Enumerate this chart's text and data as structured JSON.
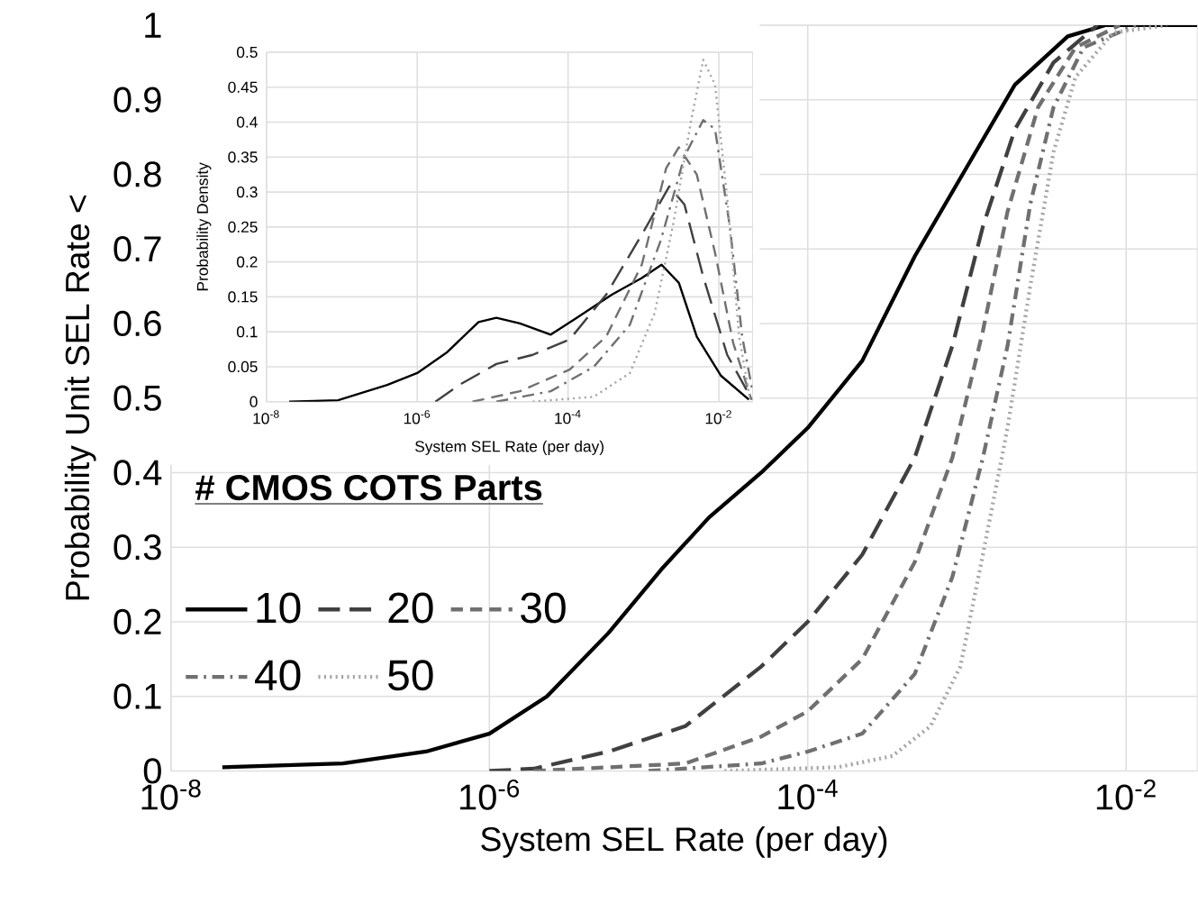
{
  "chart_data": [
    {
      "type": "line",
      "xlabel": "System SEL Rate (per day)",
      "ylabel": "Probability Unit SEL Rate <",
      "legend_title": "# CMOS COTS Parts",
      "legend": "left",
      "log": "x",
      "grid": true,
      "marker": "none",
      "xlim": [
        1e-08,
        0.028
      ],
      "ylim": [
        0,
        1
      ],
      "xticks": [
        {
          "value": 1e-08,
          "label": "10$^{-8}$"
        },
        {
          "value": 1e-06,
          "label": "10$^{-6}$"
        },
        {
          "value": 0.0001,
          "label": "10$^{-4}$"
        },
        {
          "value": 0.01,
          "label": "10$^{-2}$"
        }
      ],
      "yticks": [
        0,
        0.1,
        0.2,
        0.3,
        0.4,
        0.5,
        0.6,
        0.7,
        0.8,
        0.9,
        1
      ],
      "series": [
        {
          "name": "10",
          "color": "#000000",
          "line_style": "solid",
          "x": [
            2.1e-08,
            1.2e-07,
            4e-07,
            1e-06,
            2.3e-06,
            5.6e-06,
            1.2e-05,
            2.4e-05,
            5.1e-05,
            0.0001,
            0.00022,
            0.00047,
            0.001,
            0.002,
            0.0043,
            0.0074,
            0.028
          ],
          "values": [
            0.005,
            0.01,
            0.026,
            0.05,
            0.1,
            0.185,
            0.27,
            0.34,
            0.4,
            0.46,
            0.55,
            0.69,
            0.81,
            0.92,
            0.985,
            1,
            1
          ]
        },
        {
          "name": "20",
          "color": "#404040",
          "line_style": "longdash",
          "x": [
            1e-06,
            1.9e-06,
            5.6e-06,
            1.7e-05,
            5.1e-05,
            0.0001,
            0.00022,
            0.00047,
            0.00081,
            0.00126,
            0.002,
            0.0035,
            0.0066
          ],
          "values": [
            0,
            0.003,
            0.026,
            0.06,
            0.14,
            0.2,
            0.29,
            0.42,
            0.57,
            0.73,
            0.86,
            0.95,
            1
          ]
        },
        {
          "name": "30",
          "color": "#707070",
          "line_style": "dashed",
          "x": [
            1.9e-06,
            1.7e-05,
            5.1e-05,
            0.0001,
            0.00022,
            0.00047,
            0.00081,
            0.00126,
            0.0018,
            0.0028,
            0.0048,
            0.0091
          ],
          "values": [
            0,
            0.01,
            0.046,
            0.08,
            0.15,
            0.28,
            0.42,
            0.59,
            0.75,
            0.89,
            0.97,
            1
          ]
        },
        {
          "name": "40",
          "color": "#707070",
          "line_style": "dashdot",
          "x": [
            1e-05,
            5.1e-05,
            0.0001,
            0.00022,
            0.00047,
            0.00081,
            0.00126,
            0.0018,
            0.0025,
            0.0035,
            0.0054,
            0.0115
          ],
          "values": [
            0,
            0.01,
            0.026,
            0.05,
            0.13,
            0.26,
            0.42,
            0.57,
            0.76,
            0.89,
            0.97,
            1
          ]
        },
        {
          "name": "50",
          "color": "#a6a6a6",
          "line_style": "dotted",
          "x": [
            3e-05,
            0.000155,
            0.00034,
            0.00059,
            0.00091,
            0.00126,
            0.0018,
            0.0025,
            0.0035,
            0.0048,
            0.0083,
            0.018
          ],
          "values": [
            0,
            0.005,
            0.02,
            0.06,
            0.14,
            0.29,
            0.46,
            0.65,
            0.83,
            0.93,
            0.99,
            1
          ]
        }
      ]
    },
    {
      "type": "line",
      "xlabel": "System SEL Rate (per day)",
      "ylabel": "Probability Density",
      "log": "x",
      "grid": true,
      "marker": "none",
      "xlim": [
        1e-08,
        0.028
      ],
      "ylim": [
        0,
        0.5
      ],
      "xticks": [
        {
          "value": 1e-08,
          "label": "10$^{-8}$"
        },
        {
          "value": 1e-06,
          "label": "10$^{-6}$"
        },
        {
          "value": 0.0001,
          "label": "10$^{-4}$"
        },
        {
          "value": 0.01,
          "label": "10$^{-2}$"
        }
      ],
      "yticks": [
        0,
        0.05,
        0.1,
        0.15,
        0.2,
        0.25,
        0.3,
        0.35,
        0.4,
        0.45,
        0.5
      ],
      "series": [
        {
          "color": "#000000",
          "line_style": "solid",
          "x": [
            2e-08,
            8.9e-08,
            4e-07,
            1e-06,
            2.5e-06,
            6.5e-06,
            1.12e-05,
            2.3e-05,
            5.9e-05,
            0.000126,
            0.00038,
            0.00095,
            0.00174,
            0.00295,
            0.0051,
            0.0107,
            0.025
          ],
          "values": [
            0,
            0.002,
            0.024,
            0.041,
            0.071,
            0.114,
            0.12,
            0.112,
            0.096,
            0.119,
            0.153,
            0.177,
            0.196,
            0.17,
            0.093,
            0.037,
            0.003
          ]
        },
        {
          "color": "#404040",
          "line_style": "longdash",
          "x": [
            1.74e-06,
            3.6e-06,
            1.12e-05,
            3.4e-05,
            0.000105,
            0.00032,
            0.00095,
            0.0022,
            0.0035,
            0.0062,
            0.0129,
            0.0275
          ],
          "values": [
            0,
            0.024,
            0.054,
            0.067,
            0.089,
            0.153,
            0.239,
            0.308,
            0.282,
            0.179,
            0.067,
            0.003
          ]
        },
        {
          "color": "#707070",
          "line_style": "dashed",
          "x": [
            5.4e-06,
            2.3e-05,
            0.000105,
            0.00032,
            0.00095,
            0.002,
            0.00295,
            0.0051,
            0.0089,
            0.0155,
            0.027
          ],
          "values": [
            0,
            0.015,
            0.046,
            0.093,
            0.196,
            0.334,
            0.364,
            0.325,
            0.213,
            0.084,
            0.003
          ]
        },
        {
          "color": "#707070",
          "line_style": "dashdot",
          "x": [
            1.12e-05,
            5.9e-05,
            0.00022,
            0.00066,
            0.0017,
            0.0035,
            0.0062,
            0.0089,
            0.0141,
            0.0204,
            0.028
          ],
          "values": [
            0,
            0.015,
            0.05,
            0.11,
            0.231,
            0.351,
            0.403,
            0.39,
            0.248,
            0.093,
            0.015
          ]
        },
        {
          "color": "#a6a6a6",
          "line_style": "dotted",
          "x": [
            3.4e-05,
            0.00022,
            0.00066,
            0.00141,
            0.0025,
            0.0043,
            0.0062,
            0.0089,
            0.0129,
            0.0186,
            0.026
          ],
          "values": [
            0,
            0.007,
            0.041,
            0.127,
            0.256,
            0.403,
            0.489,
            0.454,
            0.291,
            0.093,
            0.003
          ]
        }
      ]
    }
  ]
}
